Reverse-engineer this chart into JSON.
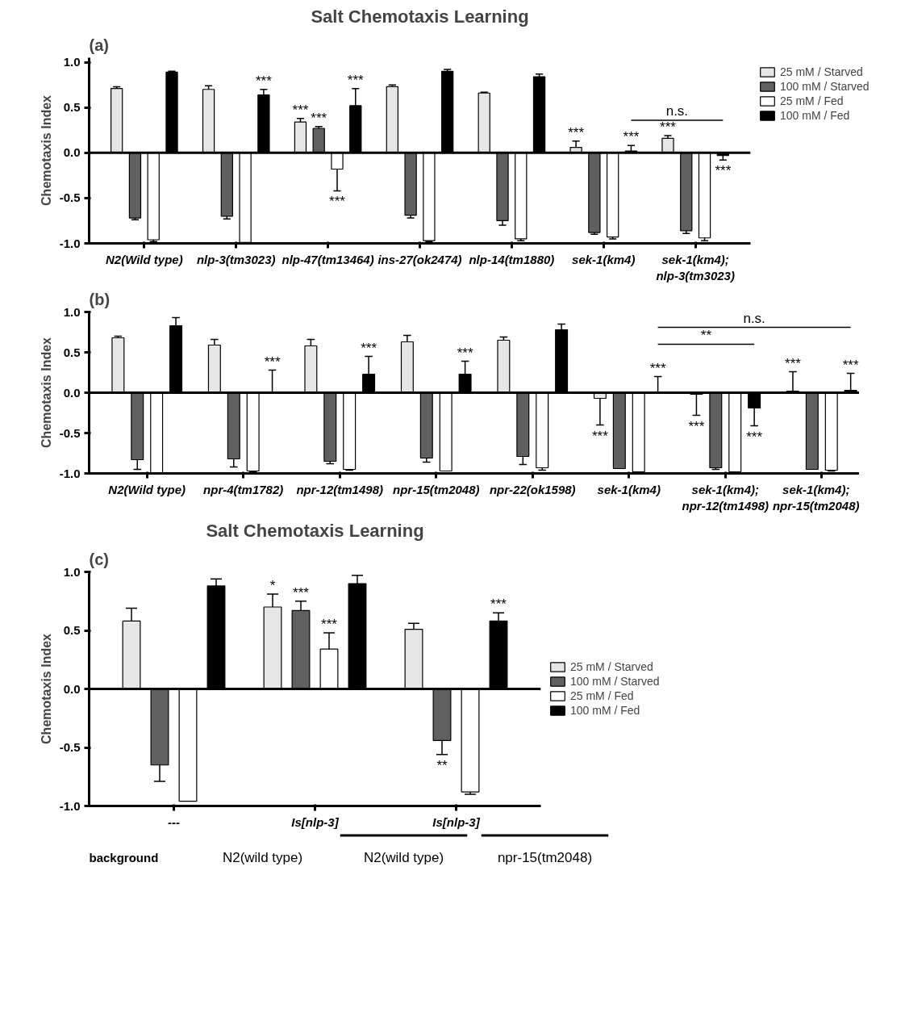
{
  "chart_data": [
    {
      "type": "bar",
      "title": "Salt Chemotaxis Learning",
      "ylabel": "Chemotaxis Index",
      "legend": "top right",
      "grid": false,
      "categories": [
        "N2(Wild type)",
        "nlp-3(tm3023)",
        "nlp-47(tm13464)",
        "ins-27(ok2474)",
        "nlp-14(tm1880)",
        "sek-1(km4)",
        "sek-1(km4); nlp-3(tm3023)"
      ],
      "ylim": [
        -1.0,
        1.05
      ],
      "yticks": [
        {
          "value": -1,
          "label": "-1.0"
        },
        {
          "value": -0.5,
          "label": "-0.5"
        },
        {
          "value": 0,
          "label": "0.0"
        },
        {
          "value": 0.5,
          "label": "0.5"
        },
        {
          "value": 1,
          "label": "1.0"
        }
      ],
      "ref_lines": [
        {
          "axis": "y",
          "value": 0
        }
      ],
      "annotations": [
        "(a)",
        "n.s."
      ],
      "series": [
        {
          "name": "25 mM / Starved",
          "color": "#e6e6e6",
          "values": [
            0.71,
            0.7,
            0.34,
            0.73,
            0.66,
            0.06,
            0.16
          ],
          "errors": [
            [
              0.71,
              0.73
            ],
            [
              0.7,
              0.74
            ],
            [
              0.34,
              0.38
            ],
            [
              0.73,
              0.75
            ],
            [
              0.66,
              0.67
            ],
            [
              0.06,
              0.13
            ],
            [
              0.16,
              0.19
            ]
          ],
          "value_labels": [
            null,
            null,
            "***",
            null,
            null,
            "***",
            "***"
          ]
        },
        {
          "name": "100 mM / Starved",
          "color": "#606060",
          "values": [
            -0.72,
            -0.7,
            0.27,
            -0.69,
            -0.75,
            -0.88,
            -0.86
          ],
          "errors": [
            [
              -0.74,
              -0.72
            ],
            [
              -0.73,
              -0.7
            ],
            [
              0.27,
              0.29
            ],
            [
              -0.72,
              -0.69
            ],
            [
              -0.8,
              -0.75
            ],
            [
              -0.9,
              -0.88
            ],
            [
              -0.89,
              -0.86
            ]
          ],
          "value_labels": [
            null,
            null,
            "***",
            null,
            null,
            null,
            null
          ]
        },
        {
          "name": "25 mM / Fed",
          "color": "#ffffff",
          "values": [
            -0.96,
            -0.99,
            -0.18,
            -0.97,
            -0.95,
            -0.93,
            -0.94
          ],
          "errors": [
            [
              -0.98,
              -0.96
            ],
            null,
            [
              -0.42,
              -0.18
            ],
            [
              -0.98,
              -0.97
            ],
            [
              -0.97,
              -0.95
            ],
            [
              -0.95,
              -0.93
            ],
            [
              -0.97,
              -0.94
            ]
          ],
          "value_labels": [
            null,
            null,
            "***",
            null,
            null,
            null,
            null
          ]
        },
        {
          "name": "100 mM / Fed",
          "color": "#000000",
          "values": [
            0.89,
            0.64,
            0.52,
            0.9,
            0.84,
            0.02,
            -0.03
          ],
          "errors": [
            [
              0.89,
              0.9
            ],
            [
              0.64,
              0.7
            ],
            [
              0.52,
              0.71
            ],
            [
              0.9,
              0.92
            ],
            [
              0.84,
              0.87
            ],
            [
              0.02,
              0.08
            ],
            [
              -0.08,
              -0.03
            ]
          ],
          "value_labels": [
            null,
            "***",
            "***",
            null,
            null,
            "***",
            "***"
          ]
        }
      ]
    },
    {
      "type": "bar",
      "ylabel": "Chemotaxis Index",
      "grid": false,
      "categories": [
        "N2(Wild type)",
        "npr-4(tm1782)",
        "npr-12(tm1498)",
        "npr-15(tm2048)",
        "npr-22(ok1598)",
        "sek-1(km4)",
        "sek-1(km4); npr-12(tm1498)",
        "sek-1(km4); npr-15(tm2048)"
      ],
      "ylim": [
        -1.0,
        1.0
      ],
      "yticks": [
        {
          "value": -1,
          "label": "-1.0"
        },
        {
          "value": -0.5,
          "label": "-0.5"
        },
        {
          "value": 0,
          "label": "0.0"
        },
        {
          "value": 0.5,
          "label": "0.5"
        },
        {
          "value": 1,
          "label": "1.0"
        }
      ],
      "ref_lines": [
        {
          "axis": "y",
          "value": 0
        }
      ],
      "annotations": [
        "(b)",
        "**",
        "n.s."
      ],
      "series": [
        {
          "color": "#e6e6e6",
          "values": [
            0.68,
            0.59,
            0.58,
            0.63,
            0.65,
            -0.07,
            -0.02,
            0.02
          ],
          "errors": [
            [
              0.68,
              0.7
            ],
            [
              0.59,
              0.66
            ],
            [
              0.58,
              0.66
            ],
            [
              0.63,
              0.71
            ],
            [
              0.65,
              0.69
            ],
            [
              -0.4,
              -0.07
            ],
            [
              -0.28,
              -0.02
            ],
            [
              0.02,
              0.26
            ]
          ],
          "value_labels": [
            null,
            null,
            null,
            null,
            null,
            "***",
            "***",
            "***"
          ]
        },
        {
          "color": "#606060",
          "values": [
            -0.83,
            -0.82,
            -0.85,
            -0.81,
            -0.79,
            -0.94,
            -0.93,
            -0.95
          ],
          "errors": [
            [
              -0.95,
              -0.83
            ],
            [
              -0.92,
              -0.82
            ],
            [
              -0.88,
              -0.85
            ],
            [
              -0.86,
              -0.81
            ],
            [
              -0.89,
              -0.79
            ],
            null,
            [
              -0.95,
              -0.93
            ],
            null
          ]
        },
        {
          "color": "#ffffff",
          "values": [
            -0.99,
            -0.97,
            -0.95,
            -0.97,
            -0.93,
            -0.98,
            -0.98,
            -0.96
          ],
          "errors": [
            null,
            [
              -0.98,
              -0.97
            ],
            [
              -0.96,
              -0.95
            ],
            null,
            [
              -0.96,
              -0.93
            ],
            null,
            null,
            [
              -0.97,
              -0.96
            ]
          ]
        },
        {
          "color": "#000000",
          "values": [
            0.83,
            0.0,
            0.23,
            0.23,
            0.78,
            0.0,
            -0.19,
            0.03
          ],
          "errors": [
            [
              0.83,
              0.93
            ],
            [
              0.0,
              0.28
            ],
            [
              0.23,
              0.45
            ],
            [
              0.23,
              0.39
            ],
            [
              0.78,
              0.85
            ],
            [
              0.0,
              0.2
            ],
            [
              -0.41,
              -0.19
            ],
            [
              0.03,
              0.24
            ]
          ],
          "value_labels": [
            null,
            "***",
            "***",
            "***",
            null,
            "***",
            "***",
            "***"
          ]
        }
      ]
    },
    {
      "type": "bar",
      "title": "Salt Chemotaxis Learning",
      "ylabel": "Chemotaxis Index",
      "legend": "right",
      "grid": false,
      "categories": [
        "---",
        "Is[nlp-3]",
        "Is[nlp-3]"
      ],
      "ylim": [
        -1.0,
        1.0
      ],
      "yticks": [
        {
          "value": -1,
          "label": "-1.0"
        },
        {
          "value": -0.5,
          "label": "-0.5"
        },
        {
          "value": 0,
          "label": "0.0"
        },
        {
          "value": 0.5,
          "label": "0.5"
        },
        {
          "value": 1,
          "label": "1.0"
        }
      ],
      "ref_lines": [
        {
          "axis": "y",
          "value": 0
        }
      ],
      "annotations": [
        "(c)",
        "background",
        "N2(wild type)",
        "N2(wild type)",
        "npr-15(tm2048)"
      ],
      "series": [
        {
          "name": "25 mM / Starved",
          "color": "#e6e6e6",
          "values": [
            0.58,
            0.7,
            0.51
          ],
          "errors": [
            [
              0.58,
              0.69
            ],
            [
              0.7,
              0.81
            ],
            [
              0.51,
              0.56
            ]
          ],
          "value_labels": [
            null,
            "*",
            null
          ]
        },
        {
          "name": "100 mM / Starved",
          "color": "#606060",
          "values": [
            -0.65,
            0.67,
            -0.44
          ],
          "errors": [
            [
              -0.79,
              -0.65
            ],
            [
              0.67,
              0.75
            ],
            [
              -0.56,
              -0.44
            ]
          ],
          "value_labels": [
            null,
            "***",
            "**"
          ]
        },
        {
          "name": "25 mM / Fed",
          "color": "#ffffff",
          "values": [
            -0.96,
            0.34,
            -0.88
          ],
          "errors": [
            null,
            [
              0.34,
              0.48
            ],
            [
              -0.9,
              -0.88
            ]
          ],
          "value_labels": [
            null,
            "***",
            null
          ]
        },
        {
          "name": "100 mM / Fed",
          "color": "#000000",
          "values": [
            0.88,
            0.9,
            0.58
          ],
          "errors": [
            [
              0.88,
              0.94
            ],
            [
              0.9,
              0.97
            ],
            [
              0.58,
              0.65
            ]
          ],
          "value_labels": [
            null,
            null,
            "***"
          ]
        }
      ]
    }
  ]
}
